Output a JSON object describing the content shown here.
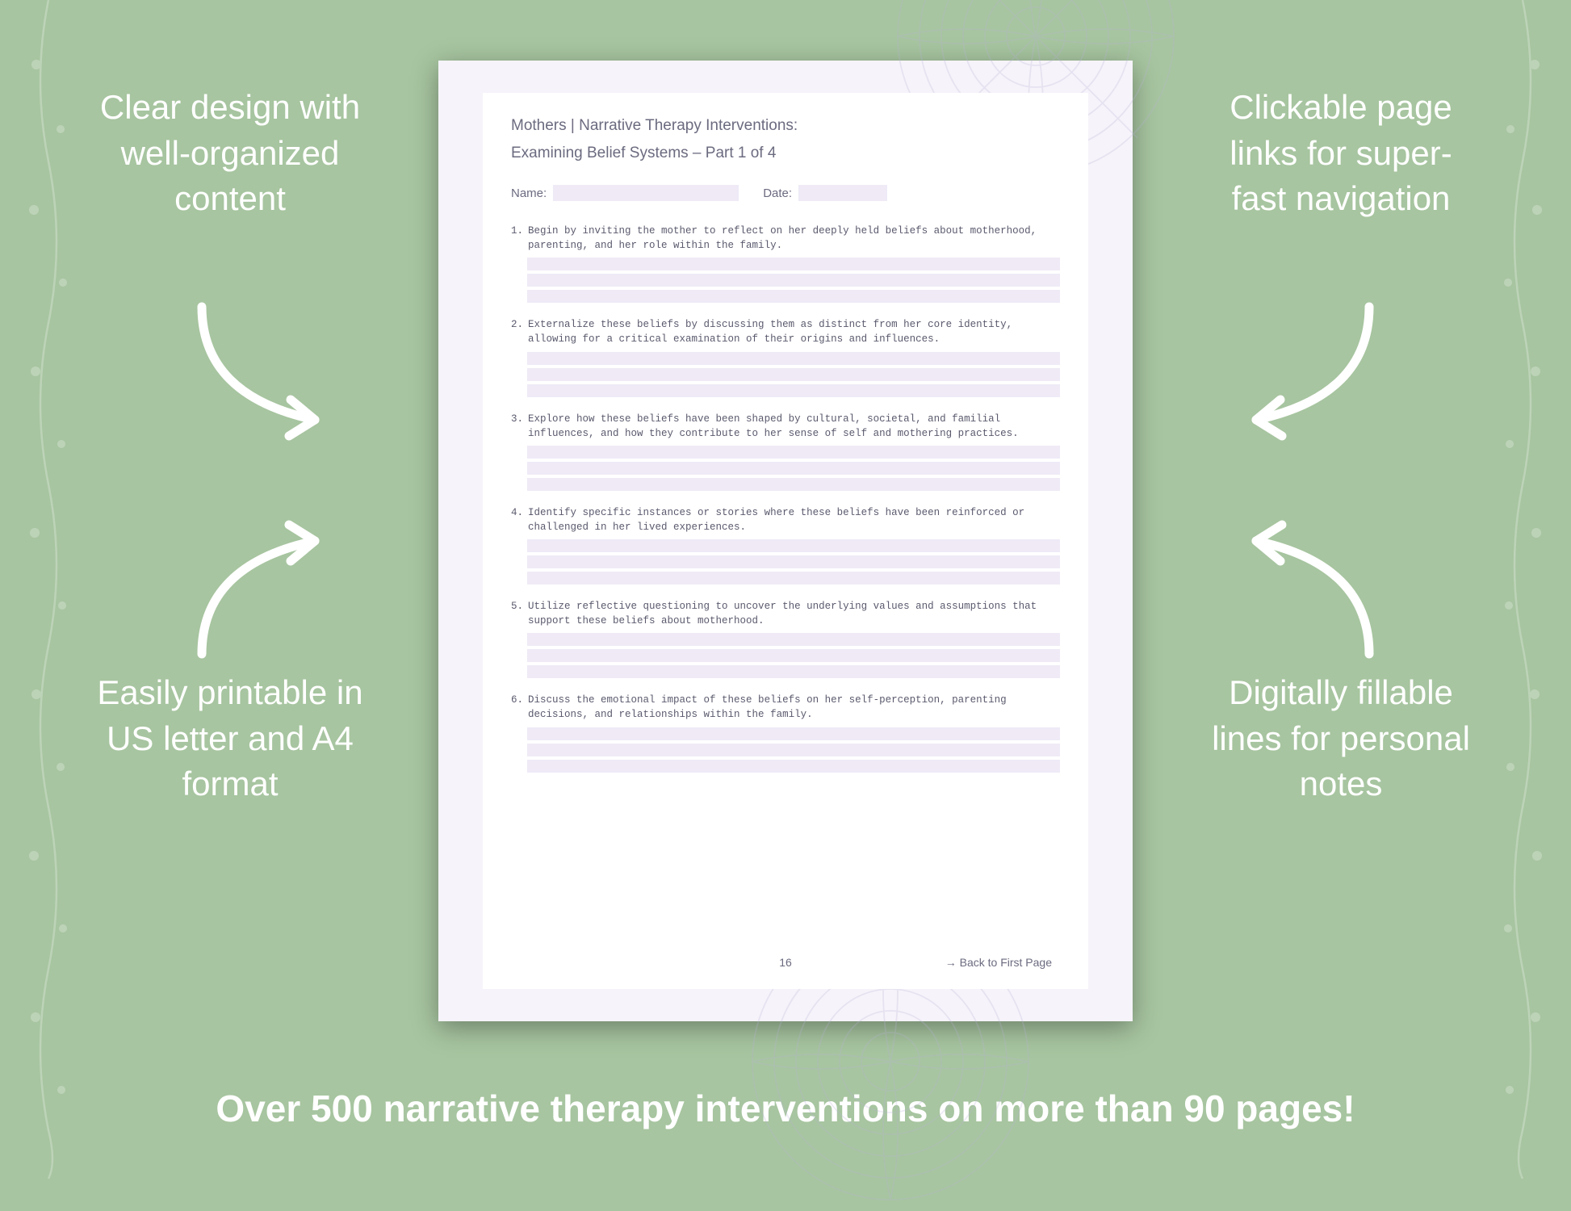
{
  "background_color": "#a7c5a0",
  "callout_text_color": "#ffffff",
  "callout_font_size_pt": 32,
  "tagline_font_size_pt": 35,
  "callouts": {
    "top_left": "Clear design with well-organized content",
    "top_right": "Clickable page links for super-fast navigation",
    "bottom_left": "Easily printable in US letter and A4 format",
    "bottom_right": "Digitally fillable lines for personal notes"
  },
  "tagline": "Over 500 narrative therapy interventions on more than 90 pages!",
  "arrow_color": "#ffffff",
  "arrow_stroke_width": 10,
  "document": {
    "page_bg": "#f6f3fa",
    "inner_bg": "#ffffff",
    "text_color": "#5a5a6e",
    "fill_line_color": "#efeaf6",
    "mandala_color": "#b9b3d6",
    "title_line_1": "Mothers | Narrative Therapy Interventions:",
    "title_line_2": "Examining Belief Systems – Part 1 of 4",
    "name_label": "Name:",
    "date_label": "Date:",
    "items": [
      {
        "num": "1.",
        "text": "Begin by inviting the mother to reflect on her deeply held beliefs about motherhood, parenting, and her role within the family."
      },
      {
        "num": "2.",
        "text": "Externalize these beliefs by discussing them as distinct from her core identity, allowing for a critical examination of their origins and influences."
      },
      {
        "num": "3.",
        "text": "Explore how these beliefs have been shaped by cultural, societal, and familial influences, and how they contribute to her sense of self and mothering practices."
      },
      {
        "num": "4.",
        "text": "Identify specific instances or stories where these beliefs have been reinforced or challenged in her lived experiences."
      },
      {
        "num": "5.",
        "text": "Utilize reflective questioning to uncover the underlying values and assumptions that support these beliefs about motherhood."
      },
      {
        "num": "6.",
        "text": "Discuss the emotional impact of these beliefs on her self-perception, parenting decisions, and relationships within the family."
      }
    ],
    "fill_lines_per_item": 3,
    "page_number": "16",
    "back_link": "→ Back to First Page"
  }
}
